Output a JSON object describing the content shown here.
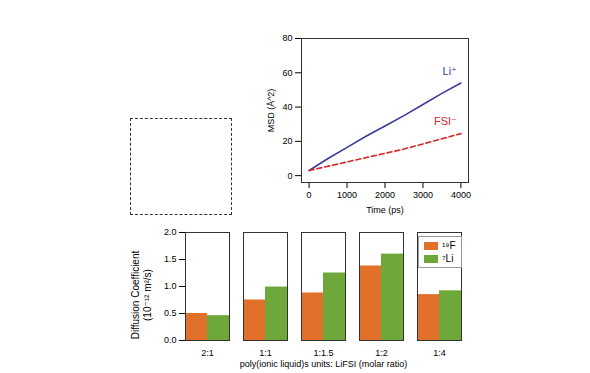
{
  "chart_data": [
    {
      "type": "line",
      "x_label": "Time (ps)",
      "y_label": "MSD (Å^2)",
      "x": [
        0,
        500,
        1000,
        1500,
        2000,
        2500,
        3000,
        3500,
        4000
      ],
      "series": [
        {
          "name": "Li⁺",
          "color": "#3b3b9c",
          "line_style": "solid",
          "values": [
            3,
            10,
            16.5,
            23,
            29,
            35,
            41.5,
            48,
            54
          ]
        },
        {
          "name": "FSI⁻",
          "color": "#d62728",
          "line_style": "dashed",
          "values": [
            3,
            5.5,
            8,
            10.5,
            13,
            15.5,
            18.5,
            21.5,
            24.5
          ]
        }
      ],
      "xlim": [
        -200,
        4200
      ],
      "xticks": [
        0,
        1000,
        2000,
        3000,
        4000
      ],
      "ylim": [
        -4,
        80
      ],
      "yticks": [
        0,
        20,
        40,
        60,
        80
      ]
    },
    {
      "type": "bar",
      "x_label": "poly(ionic liquid)s units: LiFSI (molar ratio)",
      "y_label": "Diffusion Coefficient\n(10⁻¹² m²/s)",
      "categories": [
        "2:1",
        "1:1",
        "1:1.5",
        "1:2",
        "1:4"
      ],
      "series": [
        {
          "name": "¹⁹F",
          "color": "#e0702a",
          "values": [
            0.5,
            0.75,
            0.88,
            1.38,
            0.85
          ]
        },
        {
          "name": "⁷Li",
          "color": "#6fa83a",
          "values": [
            0.46,
            0.99,
            1.25,
            1.6,
            0.92
          ]
        }
      ],
      "ylim": [
        0,
        2.0
      ],
      "yticks": [
        {
          "value": 0,
          "label": "0.0"
        },
        0.5,
        {
          "value": 1,
          "label": "1.0"
        },
        1.5,
        {
          "value": 2,
          "label": "2.0"
        }
      ],
      "legend": "top-right"
    }
  ]
}
